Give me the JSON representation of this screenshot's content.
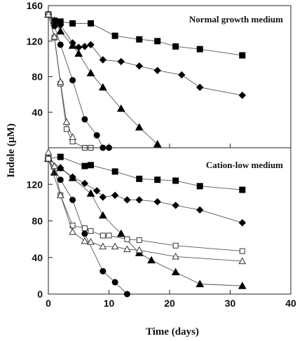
{
  "chart_data": [
    {
      "type": "line",
      "title": "Normal growth medium",
      "xlabel": "Time (days)",
      "ylabel": "Indole (µM)",
      "xlim": [
        0,
        40
      ],
      "ylim": [
        0,
        160
      ],
      "yticks": [
        "160",
        "120",
        "80",
        "40"
      ],
      "series": [
        {
          "marker": "filled-square",
          "x": [
            0,
            1,
            2,
            4,
            7,
            11,
            15,
            18,
            21,
            25,
            32
          ],
          "y": [
            150,
            143,
            142,
            140,
            140,
            126,
            122,
            120,
            114,
            111,
            104
          ]
        },
        {
          "marker": "filled-diamond",
          "x": [
            0,
            1,
            2,
            4,
            5,
            6,
            7,
            9,
            12,
            15,
            18,
            22,
            25,
            32
          ],
          "y": [
            150,
            143,
            138,
            118,
            113,
            114,
            116,
            99,
            97,
            92,
            87,
            82,
            68,
            59
          ]
        },
        {
          "marker": "filled-triangle",
          "x": [
            0,
            1,
            2,
            4,
            5,
            7,
            9,
            12,
            15,
            18
          ],
          "y": [
            150,
            143,
            131,
            115,
            106,
            84,
            68,
            44,
            23,
            4
          ]
        },
        {
          "marker": "filled-circle",
          "x": [
            0,
            1,
            2,
            4,
            6,
            8,
            9,
            10
          ],
          "y": [
            150,
            137,
            116,
            76,
            32,
            14,
            0,
            0
          ]
        },
        {
          "marker": "open-square",
          "x": [
            0,
            1,
            2,
            3,
            4,
            6,
            7
          ],
          "y": [
            150,
            124,
            72,
            21,
            7,
            0,
            0
          ]
        },
        {
          "marker": "open-triangle",
          "x": [
            0,
            1,
            2,
            3,
            4
          ],
          "y": [
            150,
            125,
            74,
            29,
            12
          ]
        }
      ]
    },
    {
      "type": "line",
      "title": "Cation-low medium",
      "xlabel": "Time (days)",
      "ylabel": "Indole (µM)",
      "xlim": [
        0,
        40
      ],
      "ylim": [
        0,
        160
      ],
      "xticks": [
        "0",
        "10",
        "20",
        "30",
        "40"
      ],
      "yticks": [
        "120",
        "80",
        "40",
        "0"
      ],
      "series": [
        {
          "marker": "filled-square",
          "x": [
            0,
            2,
            6,
            7,
            11,
            15,
            18,
            21,
            25,
            32
          ],
          "y": [
            148,
            150,
            140,
            141,
            134,
            126,
            125,
            124,
            118,
            114
          ]
        },
        {
          "marker": "filled-diamond",
          "x": [
            0,
            2,
            4,
            6,
            8,
            9,
            11,
            13,
            15,
            18,
            21,
            25,
            32
          ],
          "y": [
            148,
            138,
            128,
            121,
            113,
            106,
            108,
            103,
            103,
            101,
            97,
            92,
            78
          ]
        },
        {
          "marker": "filled-triangle",
          "x": [
            0,
            1,
            2,
            4,
            7,
            9,
            12,
            15,
            17,
            21,
            25,
            32
          ],
          "y": [
            148,
            133,
            138,
            127,
            110,
            86,
            66,
            45,
            37,
            24,
            11,
            9
          ]
        },
        {
          "marker": "filled-circle",
          "x": [
            0,
            2,
            4,
            6,
            9,
            11,
            13
          ],
          "y": [
            148,
            125,
            103,
            66,
            25,
            13,
            0
          ]
        },
        {
          "marker": "open-square",
          "x": [
            0,
            2,
            4,
            6,
            7,
            9,
            10,
            13,
            15,
            21,
            32
          ],
          "y": [
            148,
            108,
            75,
            72,
            69,
            64,
            64,
            60,
            59,
            53,
            47
          ]
        },
        {
          "marker": "open-triangle",
          "x": [
            0,
            1,
            2,
            4,
            6,
            7,
            9,
            11,
            13,
            15,
            21,
            32
          ],
          "y": [
            155,
            140,
            108,
            68,
            58,
            57,
            52,
            52,
            49,
            48,
            41,
            36
          ]
        }
      ]
    }
  ]
}
